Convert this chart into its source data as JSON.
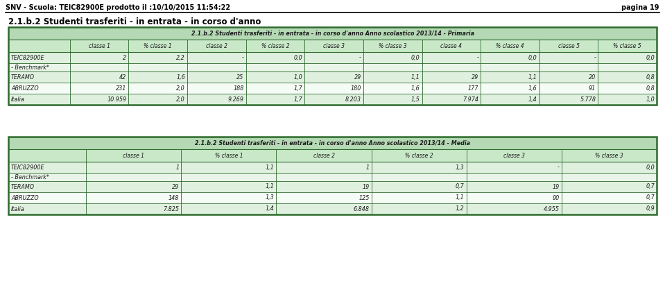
{
  "header_text": "SNV - Scuola: TEIC82900E prodotto il :10/10/2015 11:54:22",
  "page_text": "pagina 19",
  "section_title": "2.1.b.2 Studenti trasferiti - in entrata - in corso d'anno",
  "table1_title": "2.1.b.2 Studenti trasferiti - in entrata - in corso d'anno Anno scolastico 2013/14 - Primaria",
  "table1_columns": [
    "",
    "classe 1",
    "% classe 1",
    "classe 2",
    "% classe 2",
    "classe 3",
    "% classe 3",
    "classe 4",
    "% classe 4",
    "classe 5",
    "% classe 5"
  ],
  "table1_rows": [
    [
      "TEIC82900E",
      "2",
      "2,2",
      "-",
      "0,0",
      "-",
      "0,0",
      "-",
      "0,0",
      "-",
      "0,0"
    ],
    [
      "- Benchmark*",
      "",
      "",
      "",
      "",
      "",
      "",
      "",
      "",
      "",
      ""
    ],
    [
      "TERAMO",
      "42",
      "1,6",
      "25",
      "1,0",
      "29",
      "1,1",
      "29",
      "1,1",
      "20",
      "0,8"
    ],
    [
      "ABRUZZO",
      "231",
      "2,0",
      "188",
      "1,7",
      "180",
      "1,6",
      "177",
      "1,6",
      "91",
      "0,8"
    ],
    [
      "Italia",
      "10.959",
      "2,0",
      "9.269",
      "1,7",
      "8.203",
      "1,5",
      "7.974",
      "1,4",
      "5.778",
      "1,0"
    ]
  ],
  "table2_title": "2.1.b.2 Studenti trasferiti - in entrata - in corso d'anno Anno scolastico 2013/14 - Media",
  "table2_columns": [
    "",
    "classe 1",
    "% classe 1",
    "classe 2",
    "% classe 2",
    "classe 3",
    "% classe 3"
  ],
  "table2_rows": [
    [
      "TEIC82900E",
      "1",
      "1,1",
      "1",
      "1,3",
      "-",
      "0,0"
    ],
    [
      "- Benchmark*",
      "",
      "",
      "",
      "",
      "",
      ""
    ],
    [
      "TERAMO",
      "29",
      "1,1",
      "19",
      "0,7",
      "19",
      "0,7"
    ],
    [
      "ABRUZZO",
      "148",
      "1,3",
      "125",
      "1,1",
      "90",
      "0,7"
    ],
    [
      "Italia",
      "7.825",
      "1,4",
      "6.848",
      "1,2",
      "4.955",
      "0,9"
    ]
  ],
  "dark_green": "#2d6a2d",
  "title_bg": "#b5d9b5",
  "col_hdr_bg": "#c8e8c8",
  "row_bg_light": "#dff0df",
  "row_bg_white": "#f5fbf5",
  "benchmark_bg": "#e8f5e8",
  "page_bg": "#FFFFFF"
}
